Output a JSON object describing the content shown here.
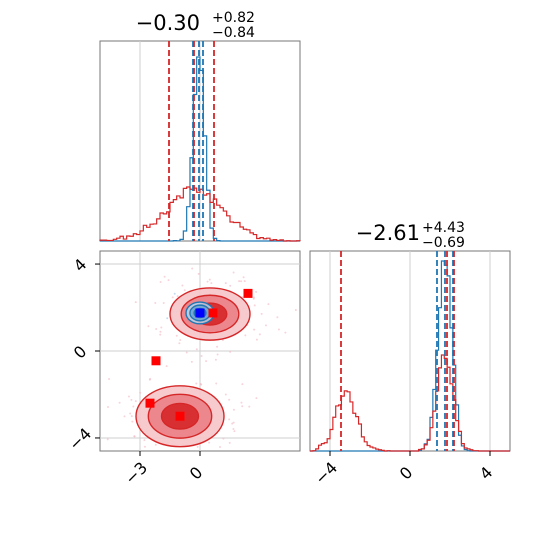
{
  "chart_data": [
    {
      "type": "histogram",
      "panel": "top-left",
      "title": "−0.30",
      "title_sup": "+0.82",
      "title_sub": "−0.84",
      "xlim": [
        -5,
        5
      ],
      "grid": true,
      "series": [
        {
          "color": "#1f77b4",
          "mode": "narrow",
          "center": -0.05,
          "spread": 0.28,
          "quantile_lines": [
            -0.35,
            -0.05,
            0.15
          ]
        },
        {
          "color": "#d62728",
          "mode": "wide",
          "center": -0.3,
          "spread": 1.45,
          "quantile_lines": [
            -1.55,
            -0.3,
            0.7
          ]
        }
      ]
    },
    {
      "type": "histogram",
      "panel": "bottom-right",
      "title": "−2.61",
      "title_sup": "+4.43",
      "title_sub": "−0.69",
      "xlim": [
        -5,
        5
      ],
      "xticks": [
        "−4",
        "0",
        "4"
      ],
      "xtick_values": [
        -4,
        0,
        4
      ],
      "grid": true,
      "series": [
        {
          "color": "#1f77b4",
          "center": 1.75,
          "spread": 0.35,
          "quantile_lines": [
            1.35,
            1.75,
            2.15
          ]
        },
        {
          "color": "#d62728",
          "components": [
            {
              "center": -3.2,
              "spread": 0.55,
              "weight": 0.45
            },
            {
              "center": 1.75,
              "spread": 0.4,
              "weight": 0.55
            }
          ],
          "quantile_lines": [
            -3.45,
            1.85,
            2.2
          ]
        }
      ]
    },
    {
      "type": "scatter",
      "panel": "bottom-left",
      "xlim": [
        -5,
        5
      ],
      "ylim": [
        -4.6,
        4.6
      ],
      "xticks": [
        "−3",
        "0"
      ],
      "xtick_values": [
        -3,
        0
      ],
      "yticks": [
        "4",
        "0",
        "−4"
      ],
      "ytick_values": [
        4,
        0,
        -4
      ],
      "grid": true,
      "contours": [
        {
          "color": "#d62728",
          "cx": 0.5,
          "cy": 1.7,
          "rx": 2.0,
          "ry": 1.2
        },
        {
          "color": "#d62728",
          "cx": -1.0,
          "cy": -3.0,
          "rx": 2.2,
          "ry": 1.4
        },
        {
          "color": "#1f77b4",
          "cx": 0.0,
          "cy": 1.75,
          "rx": 0.7,
          "ry": 0.5
        }
      ],
      "markers": [
        {
          "x": 0.0,
          "y": 1.75,
          "color": "#0000ff"
        },
        {
          "x": 0.65,
          "y": 1.75,
          "color": "#ff0000"
        },
        {
          "x": 2.4,
          "y": 2.65,
          "color": "#ff0000"
        },
        {
          "x": -2.2,
          "y": -0.45,
          "color": "#ff0000"
        },
        {
          "x": -2.5,
          "y": -2.4,
          "color": "#ff0000"
        },
        {
          "x": -1.0,
          "y": -3.0,
          "color": "#ff0000"
        }
      ]
    }
  ]
}
